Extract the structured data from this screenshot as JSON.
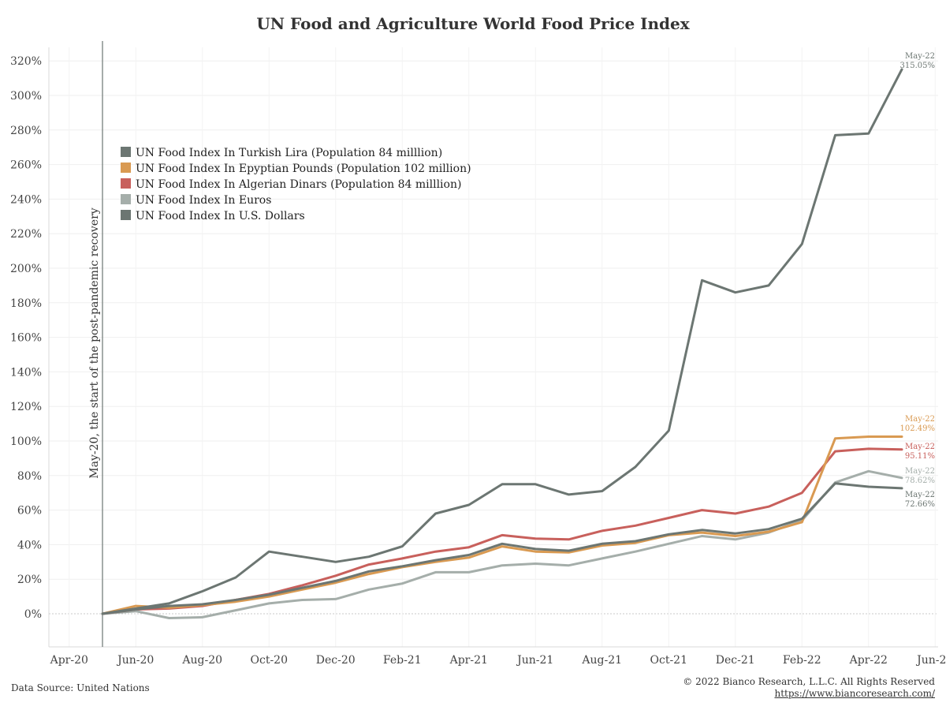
{
  "chart_data": {
    "type": "line",
    "title": "UN Food and Agriculture World Food Price Index",
    "x": [
      "May-20",
      "Jun-20",
      "Jul-20",
      "Aug-20",
      "Sep-20",
      "Oct-20",
      "Nov-20",
      "Dec-20",
      "Jan-21",
      "Feb-21",
      "Mar-21",
      "Apr-21",
      "May-21",
      "Jun-21",
      "Jul-21",
      "Aug-21",
      "Sep-21",
      "Oct-21",
      "Nov-21",
      "Dec-21",
      "Jan-22",
      "Feb-22",
      "Mar-22",
      "Apr-22",
      "May-22"
    ],
    "x_ticks": [
      "Apr-20",
      "Jun-20",
      "Aug-20",
      "Oct-20",
      "Dec-20",
      "Feb-21",
      "Apr-21",
      "Jun-21",
      "Aug-21",
      "Oct-21",
      "Dec-21",
      "Feb-22",
      "Apr-22",
      "Jun-22"
    ],
    "y_ticks": [
      "0%",
      "20%",
      "40%",
      "60%",
      "80%",
      "100%",
      "120%",
      "140%",
      "160%",
      "180%",
      "200%",
      "220%",
      "240%",
      "260%",
      "280%",
      "300%",
      "320%"
    ],
    "ylim": [
      -20,
      325
    ],
    "grid": true,
    "legend_position": "top-left",
    "series": [
      {
        "name": "UN Food Index In Turkish Lira (Population 84 milllion)",
        "color": "#6c7672",
        "values": [
          0,
          3,
          6,
          13,
          21,
          36,
          33,
          30,
          33,
          39,
          58,
          63,
          75,
          75,
          69,
          71,
          85,
          106,
          193,
          186,
          190,
          214,
          277,
          278,
          315.05
        ]
      },
      {
        "name": "UN Food Index In Epyptian Pounds (Population 102 million)",
        "color": "#d99a52",
        "values": [
          0,
          4.5,
          3.5,
          5,
          7,
          10,
          14,
          18,
          23,
          27,
          30,
          32.5,
          39,
          36,
          35.5,
          39.5,
          41,
          45.5,
          47,
          45,
          47.5,
          53,
          101.5,
          102.5,
          102.49
        ]
      },
      {
        "name": "UN Food Index In Algerian Dinars  (Population 84 milllion)",
        "color": "#c8605c",
        "values": [
          0,
          2.5,
          3,
          4.5,
          8,
          11.5,
          16.5,
          22,
          28.5,
          32,
          36,
          38.5,
          45.5,
          43.5,
          43,
          48,
          51,
          55.5,
          60,
          58,
          62,
          70,
          94,
          95.5,
          95.11
        ]
      },
      {
        "name": "UN Food Index In Euros",
        "color": "#a5aeaa",
        "values": [
          0,
          1.5,
          -2.5,
          -2,
          2,
          6,
          8,
          8.5,
          14,
          17.5,
          24,
          24,
          28,
          29,
          28,
          32,
          36,
          40.5,
          45,
          43,
          47,
          54,
          76,
          82.5,
          78.62
        ]
      },
      {
        "name": "UN Food Index In U.S. Dollars",
        "color": "#6c7672",
        "values": [
          0,
          2.5,
          4.5,
          5.5,
          8,
          11,
          15,
          19,
          24.5,
          27.5,
          31,
          34,
          40.5,
          37.5,
          36.5,
          40.5,
          42,
          46,
          48.5,
          46.5,
          49,
          55,
          75.5,
          73.5,
          72.66
        ]
      }
    ],
    "end_labels": [
      {
        "series": 0,
        "date": "May-22",
        "value": "315.05%"
      },
      {
        "series": 1,
        "date": "May-22",
        "value": "102.49%"
      },
      {
        "series": 2,
        "date": "May-22",
        "value": "95.11%"
      },
      {
        "series": 3,
        "date": "May-22",
        "value": "78.62%"
      },
      {
        "series": 4,
        "date": "May-22",
        "value": "72.66%"
      }
    ],
    "annotation": "May-20, the start of the post-pandemic recovery"
  },
  "footer": {
    "source": "Data Source: United Nations",
    "copyright": "© 2022 Bianco Research, L.L.C. All Rights Reserved",
    "url": "https://www.biancoresearch.com/"
  }
}
